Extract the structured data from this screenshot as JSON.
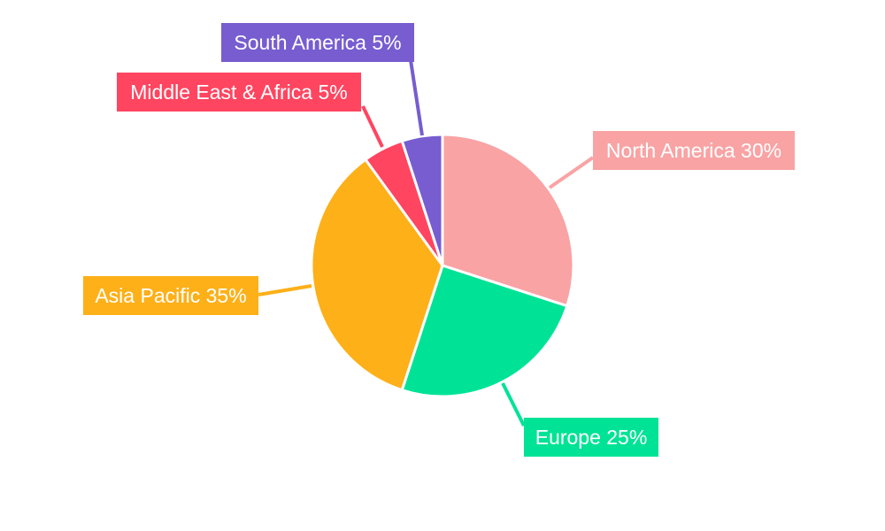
{
  "chart_data": {
    "type": "pie",
    "title": "",
    "start_angle": "top, clockwise",
    "slices": [
      {
        "label": "North America",
        "value": 30,
        "text": "North America 30%",
        "color": "#F9A3A4"
      },
      {
        "label": "Europe",
        "value": 25,
        "text": "Europe 25%",
        "color": "#00E396"
      },
      {
        "label": "Asia Pacific",
        "value": 35,
        "text": "Asia Pacific 35%",
        "color": "#FEB019"
      },
      {
        "label": "Middle East & Africa",
        "value": 5,
        "text": "Middle East & Africa 5%",
        "color": "#FF4560"
      },
      {
        "label": "South America",
        "value": 5,
        "text": "South America 5%",
        "color": "#775DD0"
      }
    ],
    "legend": "none",
    "data_labels": "outside with leader lines"
  }
}
